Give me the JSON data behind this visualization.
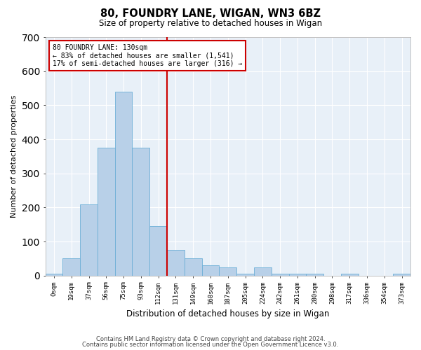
{
  "title": "80, FOUNDRY LANE, WIGAN, WN3 6BZ",
  "subtitle": "Size of property relative to detached houses in Wigan",
  "xlabel": "Distribution of detached houses by size in Wigan",
  "ylabel": "Number of detached properties",
  "bin_labels": [
    "0sqm",
    "19sqm",
    "37sqm",
    "56sqm",
    "75sqm",
    "93sqm",
    "112sqm",
    "131sqm",
    "149sqm",
    "168sqm",
    "187sqm",
    "205sqm",
    "224sqm",
    "242sqm",
    "261sqm",
    "280sqm",
    "298sqm",
    "317sqm",
    "336sqm",
    "354sqm",
    "373sqm"
  ],
  "bar_heights": [
    5,
    50,
    210,
    375,
    540,
    375,
    145,
    75,
    50,
    30,
    25,
    5,
    25,
    5,
    5,
    5,
    0,
    5,
    0,
    0,
    5
  ],
  "bar_color": "#b8d0e8",
  "bar_edge_color": "#6baed6",
  "vline_color": "#cc0000",
  "vline_x": 6.5,
  "annotation_title": "80 FOUNDRY LANE: 130sqm",
  "annotation_line1": "← 83% of detached houses are smaller (1,541)",
  "annotation_line2": "17% of semi-detached houses are larger (316) →",
  "ylim": [
    0,
    700
  ],
  "yticks": [
    0,
    100,
    200,
    300,
    400,
    500,
    600,
    700
  ],
  "background_color": "#e8f0f8",
  "footer_line1": "Contains HM Land Registry data © Crown copyright and database right 2024.",
  "footer_line2": "Contains public sector information licensed under the Open Government Licence v3.0."
}
